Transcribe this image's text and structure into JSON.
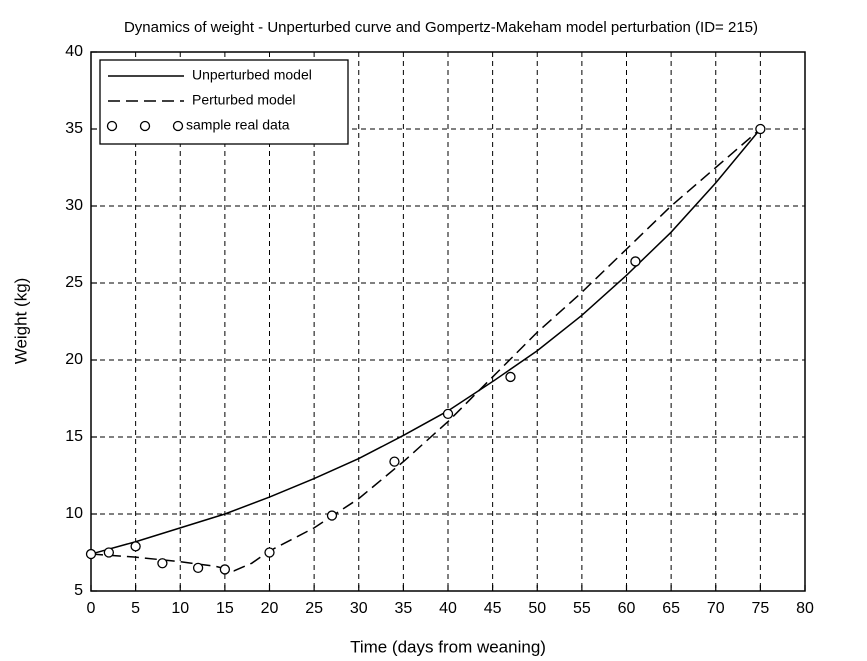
{
  "chart_data": {
    "type": "line",
    "title": "Dynamics of weight - Unperturbed curve and Gompertz-Makeham model perturbation (ID= 215)",
    "xlabel": "Time (days from weaning)",
    "ylabel": "Weight (kg)",
    "xlim": [
      0,
      80
    ],
    "ylim": [
      5,
      40
    ],
    "xticks": [
      0,
      5,
      10,
      15,
      20,
      25,
      30,
      35,
      40,
      45,
      50,
      55,
      60,
      65,
      70,
      75,
      80
    ],
    "yticks": [
      5,
      10,
      15,
      20,
      25,
      30,
      35,
      40
    ],
    "grid": true,
    "legend": "upper left",
    "series": [
      {
        "name": "Unperturbed model",
        "color": "#000000",
        "style": "solid",
        "x": [
          0,
          5,
          10,
          15,
          20,
          25,
          30,
          35,
          40,
          45,
          50,
          55,
          60,
          65,
          70,
          75
        ],
        "values": [
          7.4,
          8.2,
          9.1,
          10.0,
          11.1,
          12.3,
          13.6,
          15.1,
          16.7,
          18.6,
          20.6,
          22.9,
          25.5,
          28.3,
          31.5,
          35.0
        ]
      },
      {
        "name": "Perturbed model",
        "color": "#000000",
        "style": "dashed",
        "x": [
          0,
          5,
          10,
          14,
          16,
          18,
          20,
          25,
          30,
          35,
          40,
          45,
          50,
          55,
          60,
          65,
          70,
          75
        ],
        "values": [
          7.4,
          7.2,
          6.9,
          6.6,
          6.3,
          6.8,
          7.6,
          9.1,
          11.0,
          13.4,
          16.0,
          18.9,
          21.8,
          24.4,
          27.2,
          30.0,
          32.5,
          35.0
        ]
      },
      {
        "name": "sample real data",
        "color": "#000000",
        "style": "markers",
        "x": [
          0,
          2,
          5,
          8,
          12,
          15,
          20,
          27,
          34,
          40,
          47,
          61,
          75
        ],
        "values": [
          7.4,
          7.5,
          7.9,
          6.8,
          6.5,
          6.4,
          7.5,
          9.9,
          13.4,
          16.5,
          18.9,
          26.4,
          35.0
        ]
      }
    ]
  }
}
